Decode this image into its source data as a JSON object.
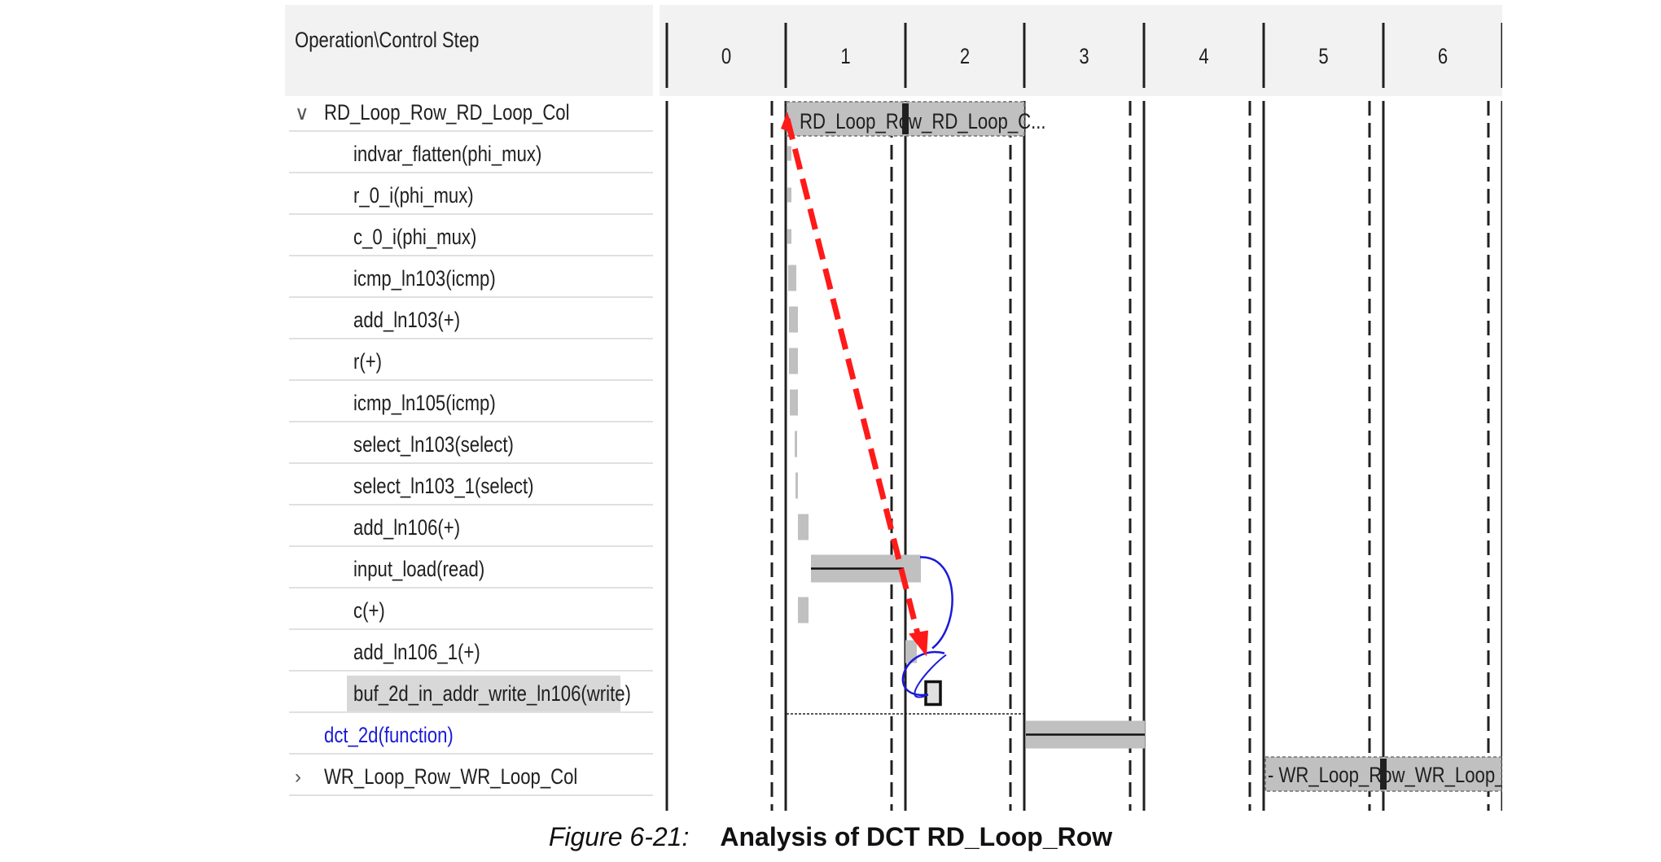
{
  "header": {
    "title": "Operation\\Control Step",
    "steps": [
      "0",
      "1",
      "2",
      "3",
      "4",
      "5",
      "6"
    ]
  },
  "rows": [
    {
      "label": "RD_Loop_Row_RD_Loop_Col",
      "kind": "loop",
      "expanded": true
    },
    {
      "label": "indvar_flatten(phi_mux)",
      "kind": "op"
    },
    {
      "label": "r_0_i(phi_mux)",
      "kind": "op"
    },
    {
      "label": "c_0_i(phi_mux)",
      "kind": "op"
    },
    {
      "label": "icmp_ln103(icmp)",
      "kind": "op"
    },
    {
      "label": "add_ln103(+)",
      "kind": "op"
    },
    {
      "label": "r(+)",
      "kind": "op"
    },
    {
      "label": "icmp_ln105(icmp)",
      "kind": "op"
    },
    {
      "label": "select_ln103(select)",
      "kind": "op"
    },
    {
      "label": "select_ln103_1(select)",
      "kind": "op"
    },
    {
      "label": "add_ln106(+)",
      "kind": "op"
    },
    {
      "label": "input_load(read)",
      "kind": "op"
    },
    {
      "label": "c(+)",
      "kind": "op"
    },
    {
      "label": "add_ln106_1(+)",
      "kind": "op"
    },
    {
      "label": "buf_2d_in_addr_write_ln106(write)",
      "kind": "op",
      "selected": true
    },
    {
      "label": "dct_2d(function)",
      "kind": "function"
    },
    {
      "label": "WR_Loop_Row_WR_Loop_Col",
      "kind": "loop",
      "expanded": false
    }
  ],
  "bars": {
    "rd_loop_label": "RD_Loop_Row_RD_Loop_C...",
    "wr_loop_label": "- WR_Loop_Row_WR_Loop_..."
  },
  "colors": {
    "arrow": "#ff1a1a",
    "dependency": "#1a1ad6",
    "bar": "#c0c0c0",
    "function_text": "#1a1ad6"
  },
  "caption": {
    "number": "Figure 6-21:",
    "title": "Analysis of DCT RD_Loop_Row"
  }
}
